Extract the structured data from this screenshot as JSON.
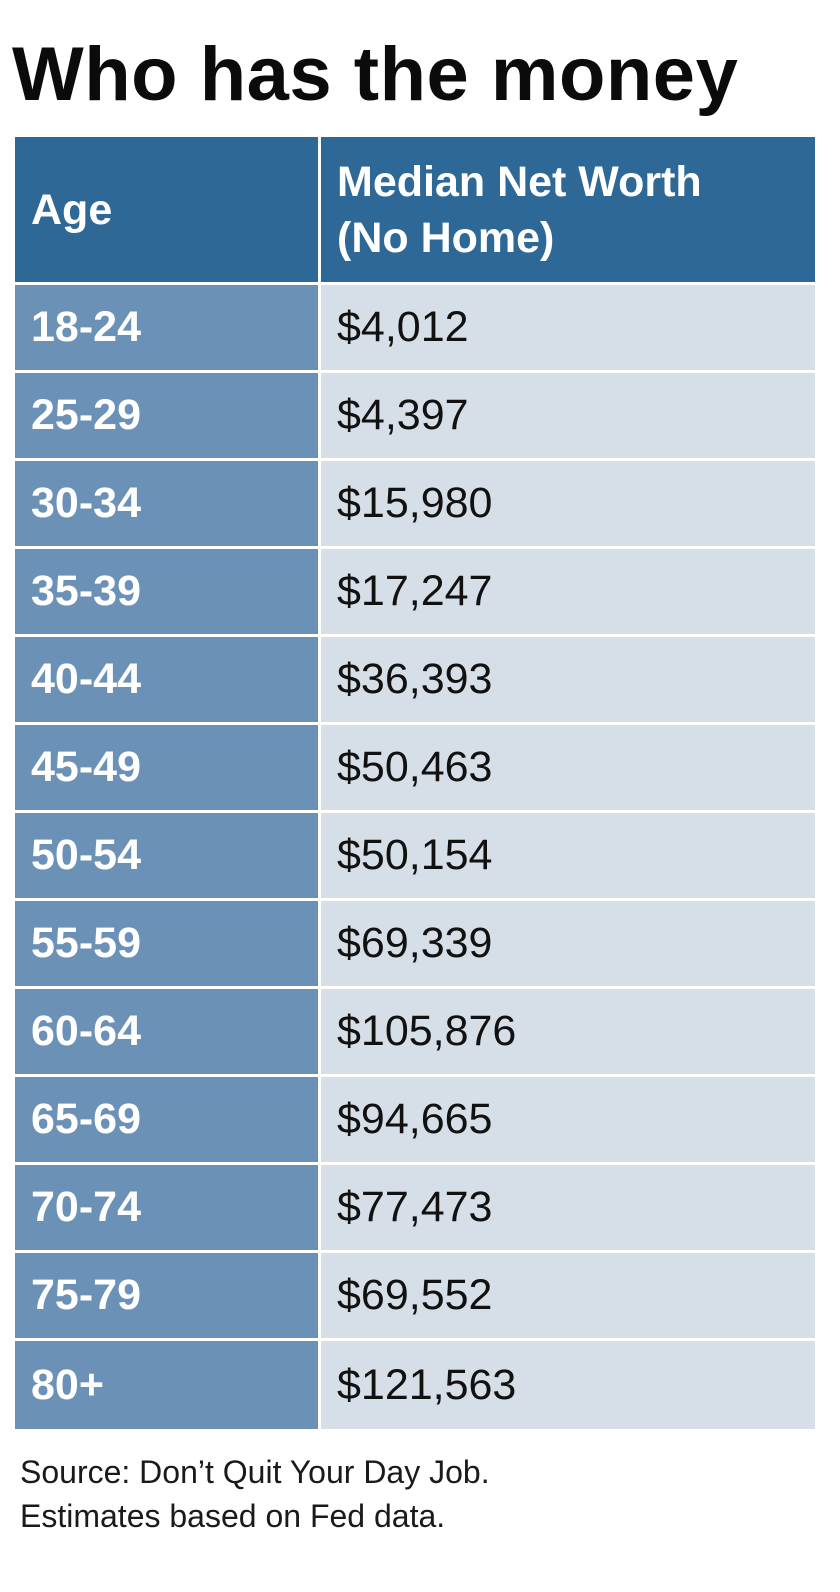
{
  "title": "Who has the money",
  "chart_data": {
    "type": "table",
    "title": "Who has the money",
    "columns": [
      "Age",
      "Median Net Worth (No Home)"
    ],
    "header": {
      "age": "Age",
      "value_line1": "Median Net Worth",
      "value_line2": "(No Home)"
    },
    "rows": [
      {
        "age": "18-24",
        "value": "$4,012"
      },
      {
        "age": "25-29",
        "value": "$4,397"
      },
      {
        "age": "30-34",
        "value": "$15,980"
      },
      {
        "age": "35-39",
        "value": "$17,247"
      },
      {
        "age": "40-44",
        "value": "$36,393"
      },
      {
        "age": "45-49",
        "value": "$50,463"
      },
      {
        "age": "50-54",
        "value": "$50,154"
      },
      {
        "age": "55-59",
        "value": "$69,339"
      },
      {
        "age": "60-64",
        "value": "$105,876"
      },
      {
        "age": "65-69",
        "value": "$94,665"
      },
      {
        "age": "70-74",
        "value": "$77,473"
      },
      {
        "age": "75-79",
        "value": "$69,552"
      },
      {
        "age": "80+",
        "value": "$121,563"
      }
    ]
  },
  "source": {
    "line1": "Source: Don’t Quit Your Day Job.",
    "line2": "Estimates based on Fed data."
  },
  "colors": {
    "header_bg": "#2e6896",
    "age_col_bg": "#6b92b6",
    "value_col_bg": "#d6dfe8",
    "divider": "#ffffff"
  }
}
